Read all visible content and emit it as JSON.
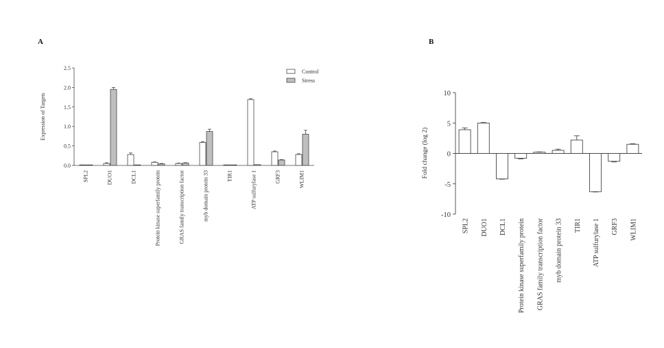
{
  "chart_data": [
    {
      "panel": "A",
      "type": "bar",
      "ylabel": "Expression of Targets",
      "ylim": [
        0,
        2.5
      ],
      "yticks": [
        "0.0",
        "0.5",
        "1.0",
        "1.5",
        "2.0",
        "2.5"
      ],
      "categories": [
        "SPL2",
        "DUO1",
        "DCL1",
        "Protein kinase superfamily protein",
        "GRAS family transcription factor",
        "myb domain protein 33",
        "TIR1",
        "ATP sulfurylase 1",
        "GRF3",
        "WLIM1"
      ],
      "series": [
        {
          "name": "Control",
          "color": "#ffffff",
          "values": [
            0.0,
            0.05,
            0.28,
            0.08,
            0.05,
            0.59,
            0.0,
            1.69,
            0.35,
            0.28
          ],
          "errors": [
            0.0,
            0.02,
            0.04,
            0.01,
            0.01,
            0.02,
            0.0,
            0.02,
            0.02,
            0.02
          ]
        },
        {
          "name": "Stress",
          "color": "#bfbfbf",
          "values": [
            0.0,
            1.95,
            0.01,
            0.04,
            0.06,
            0.87,
            0.01,
            0.02,
            0.14,
            0.8
          ],
          "errors": [
            0.0,
            0.05,
            0.0,
            0.01,
            0.01,
            0.06,
            0.0,
            0.0,
            0.01,
            0.1
          ]
        }
      ],
      "legend_position": "top-right"
    },
    {
      "panel": "B",
      "type": "bar",
      "ylabel": "Fold change (log 2)",
      "ylim": [
        -10,
        10
      ],
      "yticks": [
        "-10",
        "-5",
        "0",
        "5",
        "10"
      ],
      "categories": [
        "SPL2",
        "DUO1",
        "DCL1",
        "Protein kinase superfamily protein",
        "GRAS family transcription factor",
        "myb domain protein 33",
        "TIR1",
        "ATP sulfurylase 1",
        "GRF3",
        "WLIM1"
      ],
      "values": [
        3.9,
        5.0,
        -4.2,
        -0.8,
        0.2,
        0.5,
        2.2,
        -6.3,
        -1.3,
        1.5
      ],
      "errors": [
        0.3,
        0.1,
        0.05,
        0.1,
        0.05,
        0.2,
        0.7,
        0.05,
        0.1,
        0.1
      ]
    }
  ]
}
